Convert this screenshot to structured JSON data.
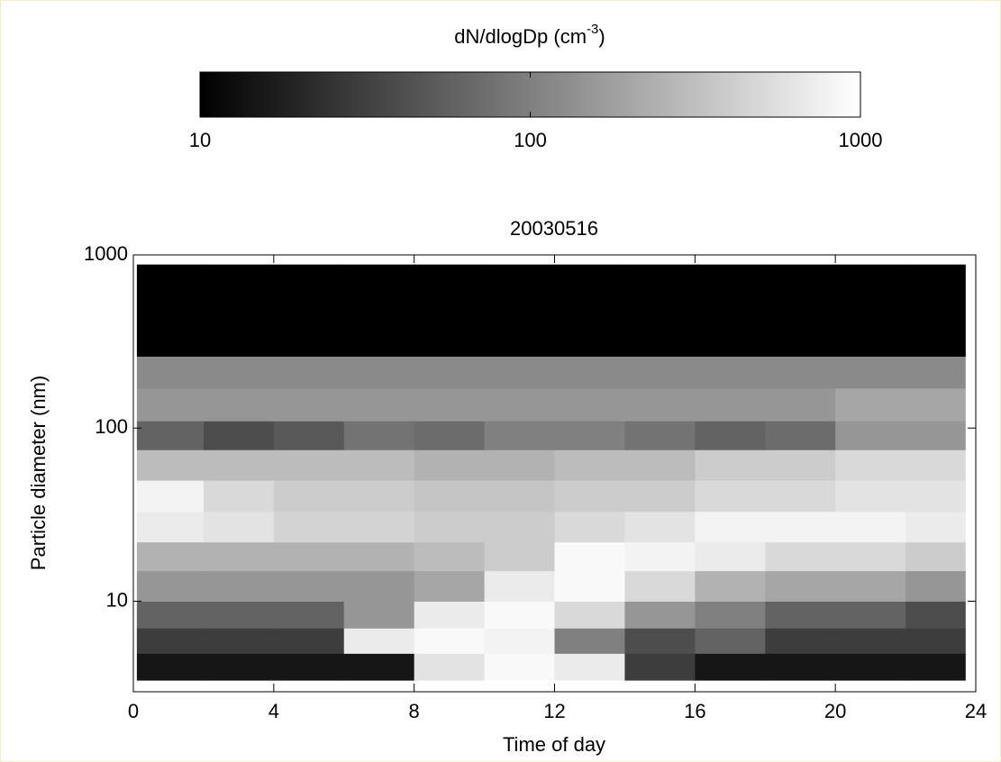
{
  "chart_data": {
    "type": "heatmap",
    "title": "20030516",
    "x_label": "Time of day",
    "y_label": "Particle diameter (nm)",
    "colorbar_label": {
      "text": "dN/dlogDp (cm",
      "sup": "-3",
      "tail": ")"
    },
    "xlim": [
      0,
      24
    ],
    "xticks": [
      0,
      4,
      8,
      12,
      16,
      20,
      24
    ],
    "ylim": [
      3,
      1000
    ],
    "yticks": [
      10,
      100,
      1000
    ],
    "y_log": true,
    "clim": [
      10,
      1000
    ],
    "cticks": [
      10,
      100,
      1000
    ],
    "c_log": true,
    "colormap": [
      "#000000",
      "#ffffff"
    ],
    "x_edges": [
      0.1,
      2,
      4,
      6,
      8,
      10,
      12,
      14,
      16,
      18,
      20,
      22,
      23.7
    ],
    "y_edges": [
      3.5,
      5,
      7,
      10,
      15,
      22,
      33,
      50,
      75,
      110,
      170,
      260,
      880
    ],
    "z": [
      [
        15,
        15,
        15,
        15,
        600,
        900,
        700,
        30,
        15,
        15,
        15,
        15
      ],
      [
        30,
        30,
        30,
        700,
        900,
        800,
        100,
        40,
        60,
        30,
        30,
        30
      ],
      [
        60,
        60,
        60,
        150,
        700,
        900,
        500,
        150,
        100,
        60,
        60,
        40
      ],
      [
        150,
        150,
        150,
        150,
        200,
        700,
        900,
        500,
        250,
        200,
        200,
        150
      ],
      [
        250,
        250,
        250,
        250,
        300,
        400,
        900,
        800,
        700,
        500,
        500,
        400
      ],
      [
        700,
        600,
        450,
        450,
        400,
        400,
        500,
        600,
        800,
        800,
        800,
        700
      ],
      [
        800,
        500,
        400,
        400,
        350,
        350,
        400,
        400,
        500,
        500,
        600,
        600
      ],
      [
        300,
        300,
        300,
        300,
        250,
        250,
        300,
        300,
        400,
        400,
        500,
        500
      ],
      [
        60,
        40,
        50,
        80,
        70,
        100,
        100,
        80,
        60,
        70,
        150,
        150
      ],
      [
        150,
        150,
        150,
        150,
        150,
        150,
        150,
        150,
        150,
        150,
        200,
        200
      ],
      [
        120,
        120,
        120,
        120,
        120,
        120,
        120,
        120,
        120,
        120,
        120,
        120
      ],
      [
        10,
        10,
        10,
        10,
        10,
        10,
        10,
        10,
        10,
        10,
        10,
        10
      ]
    ]
  }
}
